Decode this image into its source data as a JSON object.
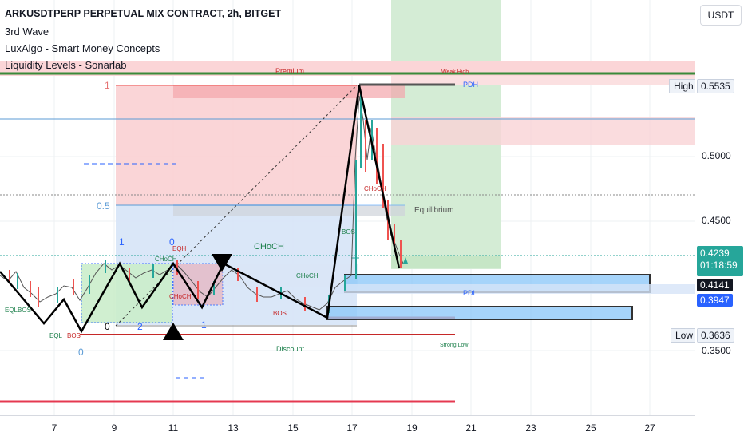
{
  "legend": {
    "title": "ARKUSDTPERP PERPETUAL MIX CONTRACT, 2h, BITGET",
    "indicators": [
      "3rd Wave",
      "LuxAlgo - Smart Money Concepts",
      "Liquidity Levels - Sonarlab"
    ]
  },
  "currency_button": "USDT",
  "price_axis": {
    "ticks": [
      "0.5000",
      "0.4500",
      "0.3500"
    ],
    "current_price": "0.4239",
    "countdown": "01:18:59",
    "tag_dark": "0.4141",
    "tag_blue": "0.3947",
    "high_label": "High",
    "high_value": "0.5535",
    "low_label": "Low",
    "low_value": "0.3636"
  },
  "time_axis": {
    "ticks": [
      "7",
      "9",
      "11",
      "13",
      "15",
      "17",
      "19",
      "21",
      "23",
      "25",
      "27"
    ]
  },
  "annotations": {
    "premium": "Premium",
    "discount": "Discount",
    "equilibrium": "Equilibrium",
    "pdh": "PDH",
    "pdl": "PDL",
    "weak_high": "Weak High",
    "strong_low": "Strong Low",
    "choch_main": "CHoCH",
    "choch_small_1": "CHoCH",
    "choch_small_2": "CHoCH",
    "choch_small_3": "CHoCH",
    "choch_small_4": "CHoCH",
    "eqh": "EQH",
    "eql": "EQL",
    "eqlbos": "EQLBOS",
    "bos_1": "BOS",
    "bos_2": "BOS",
    "bos_3": "BOS",
    "fib_1": "1",
    "fib_05": "0.5",
    "fib_0_left": "0",
    "wave_1": "1",
    "wave_0_top": "0",
    "wave_0_bottom": "0",
    "wave_2": "2",
    "wave_1b": "1"
  },
  "colors": {
    "bull": "#26a69a",
    "bear": "#ef5350",
    "premium_zone": "#f7c5c8",
    "discount_zone": "#cfe0f5",
    "accent_blue": "#2962ff",
    "green_target": "#c8e6c9"
  }
}
